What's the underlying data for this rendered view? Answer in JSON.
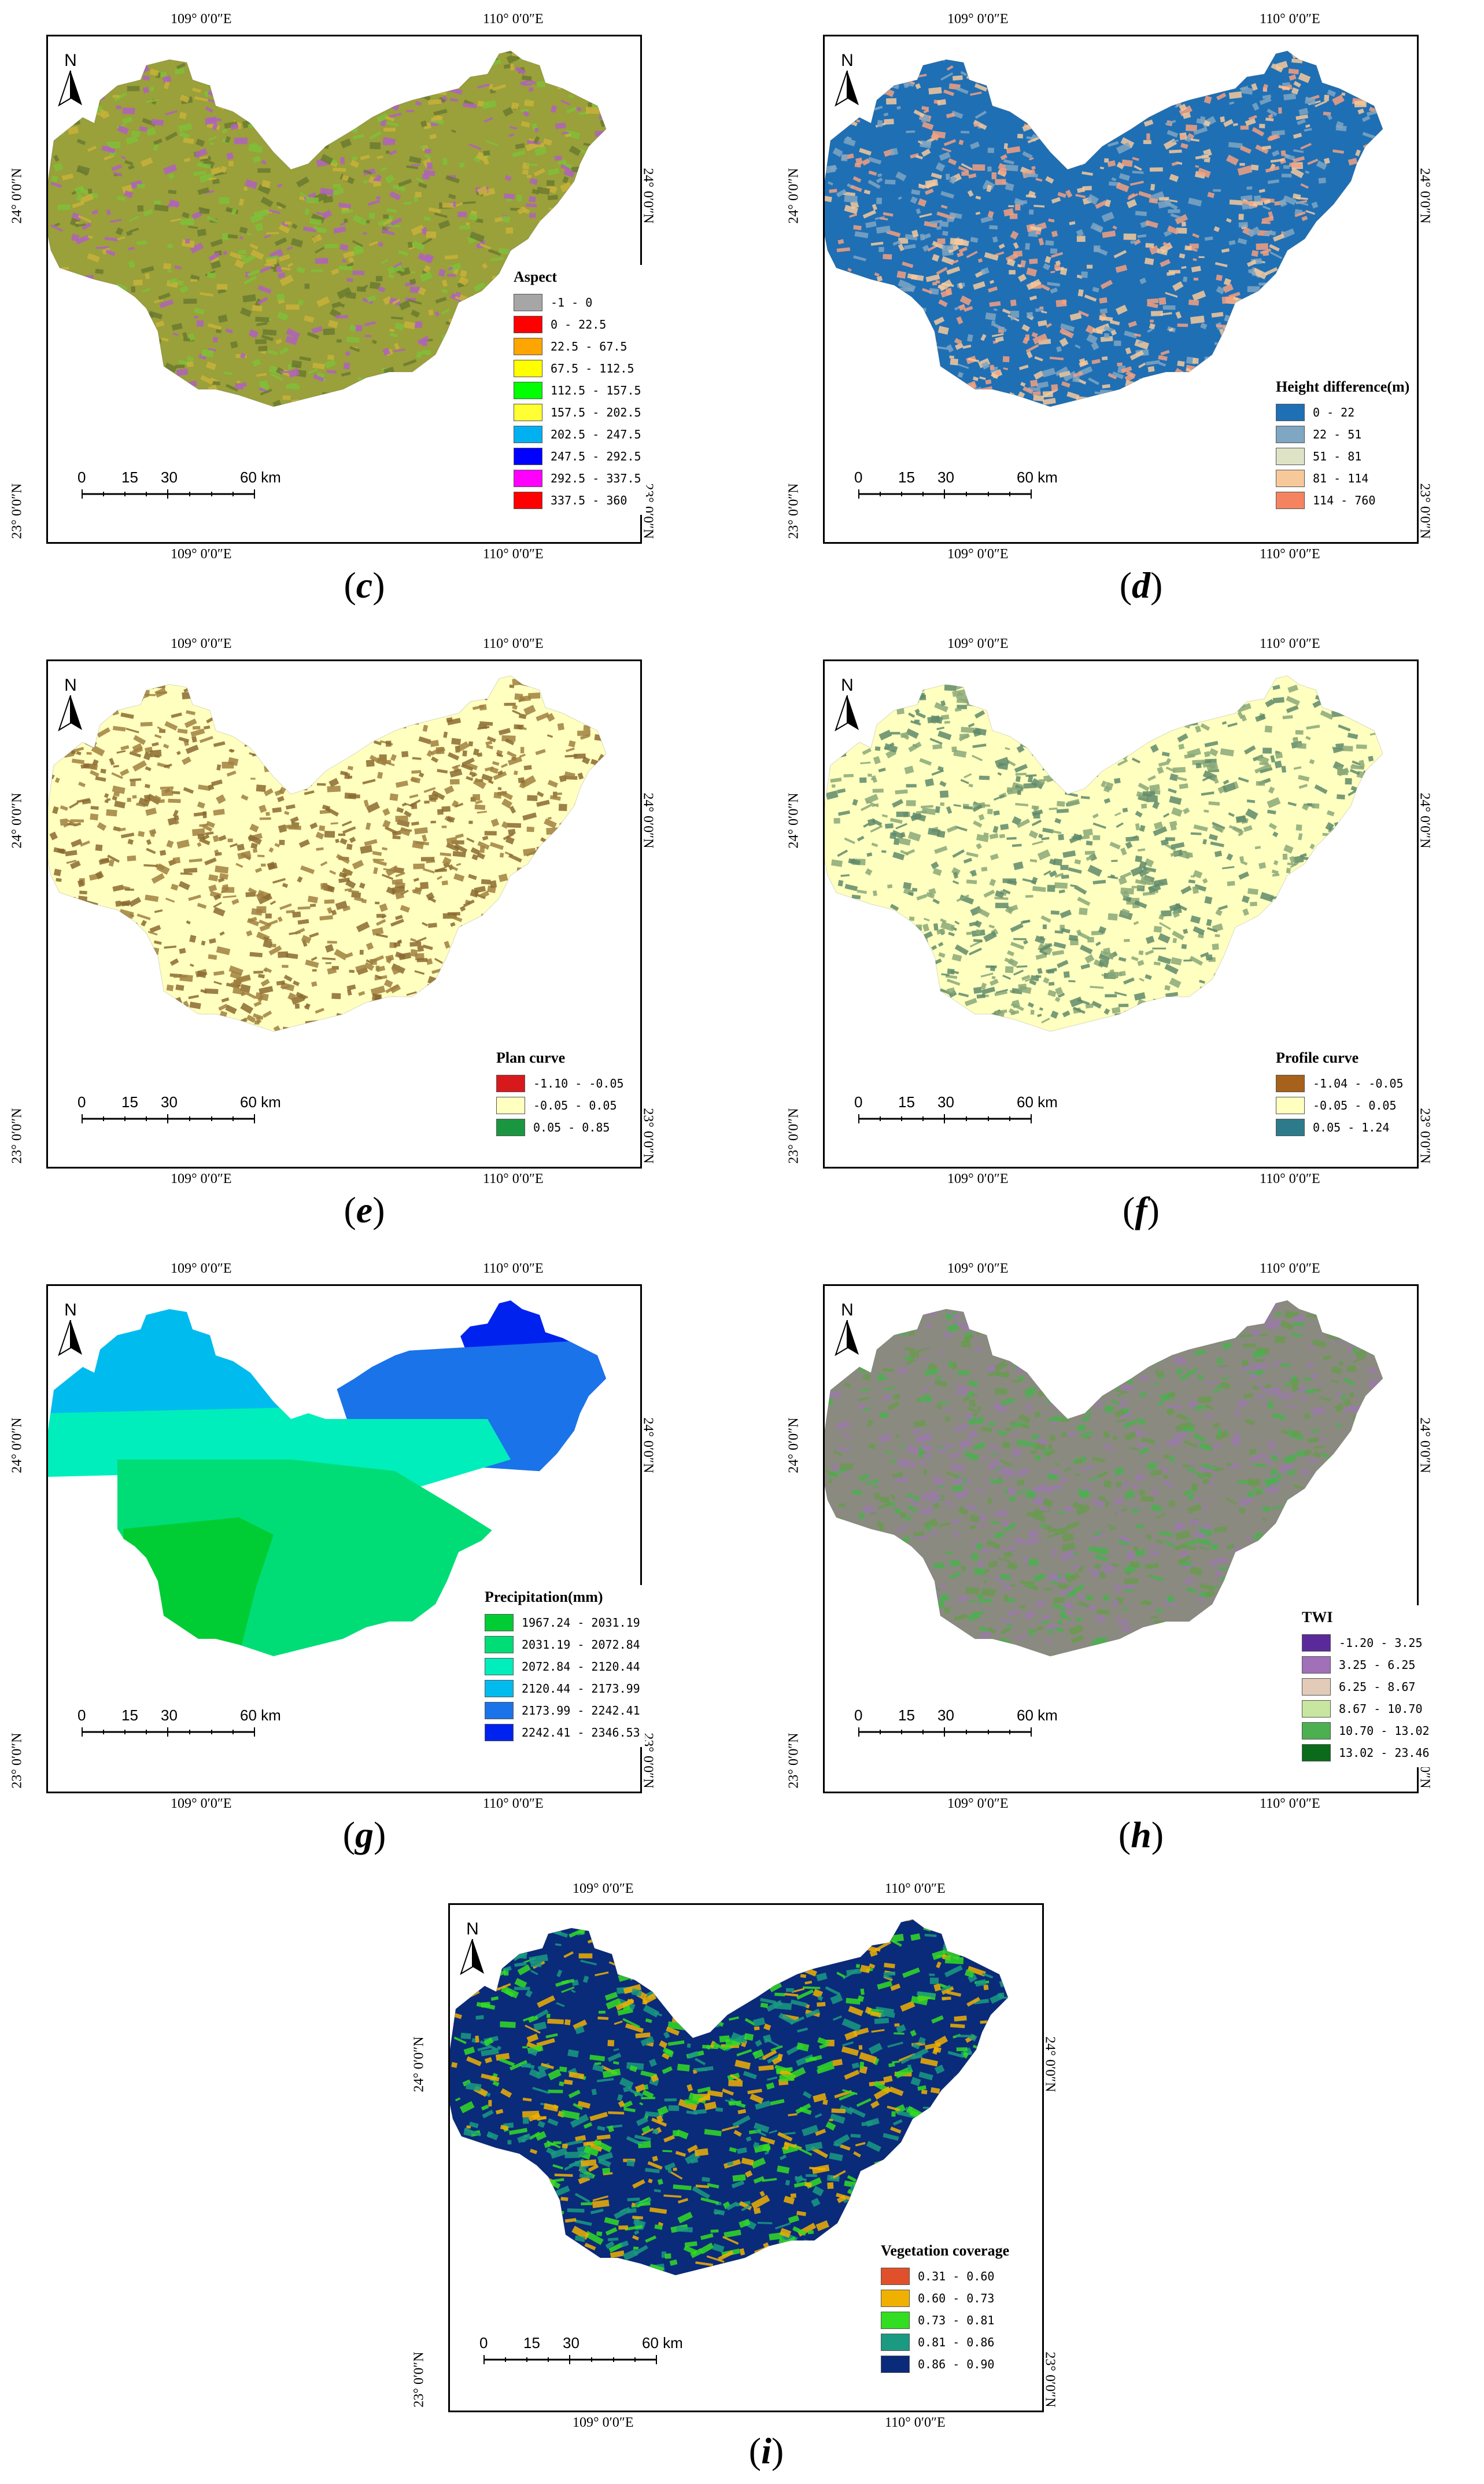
{
  "coords": {
    "lon_left": "109° 0′0″E",
    "lon_right": "110° 0′0″E",
    "lat_top": "24° 0′0″N",
    "lat_bottom": "23° 0′0″N"
  },
  "north_label": "N",
  "scale": {
    "labels": [
      "0",
      "15",
      "30",
      "60 km"
    ]
  },
  "panels": [
    {
      "id": "c",
      "caption": "c",
      "legend_title": "Aspect",
      "items": [
        {
          "label": "-1 - 0",
          "color": "#a6a6a6"
        },
        {
          "label": "0 - 22.5",
          "color": "#ff0000"
        },
        {
          "label": "22.5 - 67.5",
          "color": "#ffa500"
        },
        {
          "label": "67.5 - 112.5",
          "color": "#ffff00"
        },
        {
          "label": "112.5 - 157.5",
          "color": "#00ff00"
        },
        {
          "label": "157.5 - 202.5",
          "color": "#ffff33"
        },
        {
          "label": "202.5 - 247.5",
          "color": "#00b0f0"
        },
        {
          "label": "247.5 - 292.5",
          "color": "#0000ff"
        },
        {
          "label": "292.5 - 337.5",
          "color": "#ff00ff"
        },
        {
          "label": "337.5 - 360",
          "color": "#ff0000"
        }
      ],
      "map_colors": [
        "#9aa03a",
        "#c8b23a",
        "#7fbf3a",
        "#b060c0",
        "#6a7a30"
      ]
    },
    {
      "id": "d",
      "caption": "d",
      "legend_title": "Height difference(m)",
      "items": [
        {
          "label": "0 - 22",
          "color": "#1f6fb4"
        },
        {
          "label": "22 - 51",
          "color": "#7fa6c2"
        },
        {
          "label": "51 - 81",
          "color": "#dfe3c5"
        },
        {
          "label": "81 - 114",
          "color": "#f7c99a"
        },
        {
          "label": "114 - 760",
          "color": "#f4845f"
        }
      ],
      "map_colors": [
        "#1f6fb4",
        "#7fa6c2",
        "#f7c99a",
        "#f4a07f"
      ]
    },
    {
      "id": "e",
      "caption": "e",
      "legend_title": "Plan curve",
      "items": [
        {
          "label": "-1.10 - -0.05",
          "color": "#d7191c"
        },
        {
          "label": "-0.05 - 0.05",
          "color": "#ffffc0"
        },
        {
          "label": "0.05 - 0.85",
          "color": "#1a9641"
        }
      ],
      "map_colors": [
        "#ffffc0",
        "#8b6a2f",
        "#a08040"
      ]
    },
    {
      "id": "f",
      "caption": "f",
      "legend_title": "Profile curve",
      "items": [
        {
          "label": "-1.04 - -0.05",
          "color": "#a6611a"
        },
        {
          "label": "-0.05 - 0.05",
          "color": "#ffffc0"
        },
        {
          "label": "0.05 - 1.24",
          "color": "#2c7a8a"
        }
      ],
      "map_colors": [
        "#ffffc0",
        "#5f8a6a",
        "#8aa878"
      ]
    },
    {
      "id": "g",
      "caption": "g",
      "legend_title": "Precipitation(mm)",
      "items": [
        {
          "label": "1967.24 - 2031.19",
          "color": "#00cc33"
        },
        {
          "label": "2031.19 - 2072.84",
          "color": "#00dd77"
        },
        {
          "label": "2072.84 - 2120.44",
          "color": "#00eebb"
        },
        {
          "label": "2120.44 - 2173.99",
          "color": "#00bbee"
        },
        {
          "label": "2173.99 - 2242.41",
          "color": "#1a73e8"
        },
        {
          "label": "2242.41 - 2346.53",
          "color": "#0022ee"
        }
      ],
      "map_colors": []
    },
    {
      "id": "h",
      "caption": "h",
      "legend_title": "TWI",
      "items": [
        {
          "label": "-1.20 - 3.25",
          "color": "#5b2a9a"
        },
        {
          "label": "3.25 - 6.25",
          "color": "#a070b8"
        },
        {
          "label": "6.25 - 8.67",
          "color": "#e2cbb8"
        },
        {
          "label": "8.67 - 10.70",
          "color": "#c8e6a0"
        },
        {
          "label": "10.70 - 13.02",
          "color": "#4caf50"
        },
        {
          "label": "13.02 - 23.46",
          "color": "#0a6b1a"
        }
      ],
      "map_colors": [
        "#8a8a80",
        "#9a7aa8",
        "#6a9a50",
        "#4caf50"
      ]
    },
    {
      "id": "i",
      "caption": "i",
      "legend_title": "Vegetation coverage",
      "items": [
        {
          "label": "0.31 - 0.60",
          "color": "#e0502a"
        },
        {
          "label": "0.60 - 0.73",
          "color": "#f0b000"
        },
        {
          "label": "0.73 - 0.81",
          "color": "#33dd22"
        },
        {
          "label": "0.81 - 0.86",
          "color": "#1a9a80"
        },
        {
          "label": "0.86 - 0.90",
          "color": "#0a2a7a"
        }
      ],
      "map_colors": [
        "#0a2a7a",
        "#1a9a80",
        "#33dd22",
        "#f0b000"
      ]
    }
  ]
}
